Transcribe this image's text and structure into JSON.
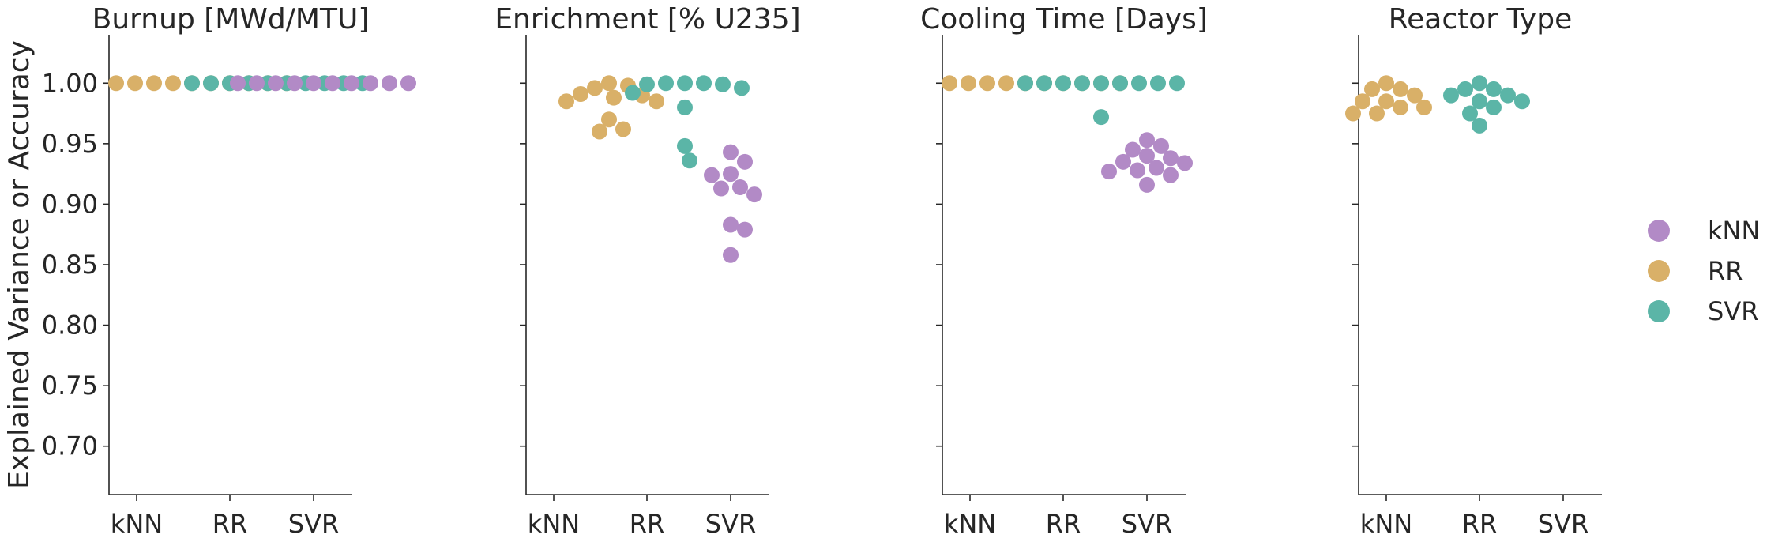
{
  "chart_data": {
    "type": "scatter",
    "kind": "swarm",
    "ylabel": "Explained Variance or Accuracy",
    "ylim": [
      0.66,
      1.04
    ],
    "yticks": [
      0.7,
      0.75,
      0.8,
      0.85,
      0.9,
      0.95,
      1.0
    ],
    "categories": [
      "kNN",
      "RR",
      "SVR"
    ],
    "shared_y": true,
    "legend": {
      "placement": "right",
      "entries": [
        {
          "name": "kNN",
          "color": "#b28ac6"
        },
        {
          "name": "RR",
          "color": "#d9b068"
        },
        {
          "name": "SVR",
          "color": "#5bb5a7"
        }
      ]
    },
    "panels": [
      {
        "title": "Burnup [MWd/MTU]",
        "series": [
          {
            "name": "RR",
            "category": "RR",
            "color_series": "RR",
            "values": [
              1.0,
              1.0,
              1.0,
              1.0,
              1.0,
              1.0,
              1.0,
              1.0,
              1.0,
              1.0
            ]
          },
          {
            "name": "SVR",
            "category": "RR",
            "color_series": "SVR",
            "values": [
              1.0,
              1.0,
              1.0,
              1.0,
              1.0,
              1.0,
              1.0,
              1.0,
              1.0,
              1.0
            ]
          },
          {
            "name": "kNN",
            "category": "SVR",
            "color_series": "kNN",
            "values": [
              1.0,
              1.0,
              1.0,
              1.0,
              1.0,
              1.0,
              1.0,
              1.0,
              1.0,
              1.0
            ]
          }
        ]
      },
      {
        "title": "Enrichment [% U235]",
        "series": [
          {
            "name": "RR",
            "category": "RR",
            "color_series": "RR",
            "values": [
              1.0,
              0.998,
              0.996,
              0.991,
              0.99,
              0.988,
              0.985,
              0.985,
              0.97,
              0.962,
              0.96
            ]
          },
          {
            "name": "SVR",
            "category": "RR",
            "color_series": "SVR",
            "values": [
              1.0,
              1.0,
              1.0,
              0.999,
              0.999,
              0.996,
              0.992,
              0.98,
              0.948,
              0.936
            ]
          },
          {
            "name": "kNN",
            "category": "SVR",
            "color_series": "kNN",
            "values": [
              0.943,
              0.935,
              0.925,
              0.924,
              0.914,
              0.913,
              0.908,
              0.883,
              0.879,
              0.858
            ]
          }
        ]
      },
      {
        "title": "Cooling Time [Days]",
        "series": [
          {
            "name": "RR",
            "category": "RR",
            "color_series": "RR",
            "values": [
              1.0,
              1.0,
              1.0,
              1.0,
              1.0,
              1.0,
              1.0,
              1.0,
              1.0,
              1.0
            ]
          },
          {
            "name": "SVR",
            "category": "RR",
            "color_series": "SVR",
            "values": [
              1.0,
              1.0,
              1.0,
              1.0,
              1.0,
              1.0,
              1.0,
              1.0,
              1.0,
              0.972
            ]
          },
          {
            "name": "kNN",
            "category": "SVR",
            "color_series": "kNN",
            "values": [
              0.953,
              0.948,
              0.945,
              0.94,
              0.938,
              0.935,
              0.934,
              0.93,
              0.928,
              0.927,
              0.924,
              0.916
            ]
          }
        ]
      },
      {
        "title": "Reactor Type",
        "series": [
          {
            "name": "RR",
            "category": "kNN",
            "color_series": "RR",
            "values": [
              1.0,
              0.995,
              0.995,
              0.99,
              0.985,
              0.985,
              0.98,
              0.98,
              0.975,
              0.975
            ]
          },
          {
            "name": "SVR",
            "category": "RR",
            "color_series": "SVR",
            "values": [
              1.0,
              0.995,
              0.995,
              0.99,
              0.99,
              0.985,
              0.985,
              0.98,
              0.975,
              0.965
            ]
          }
        ]
      }
    ]
  }
}
